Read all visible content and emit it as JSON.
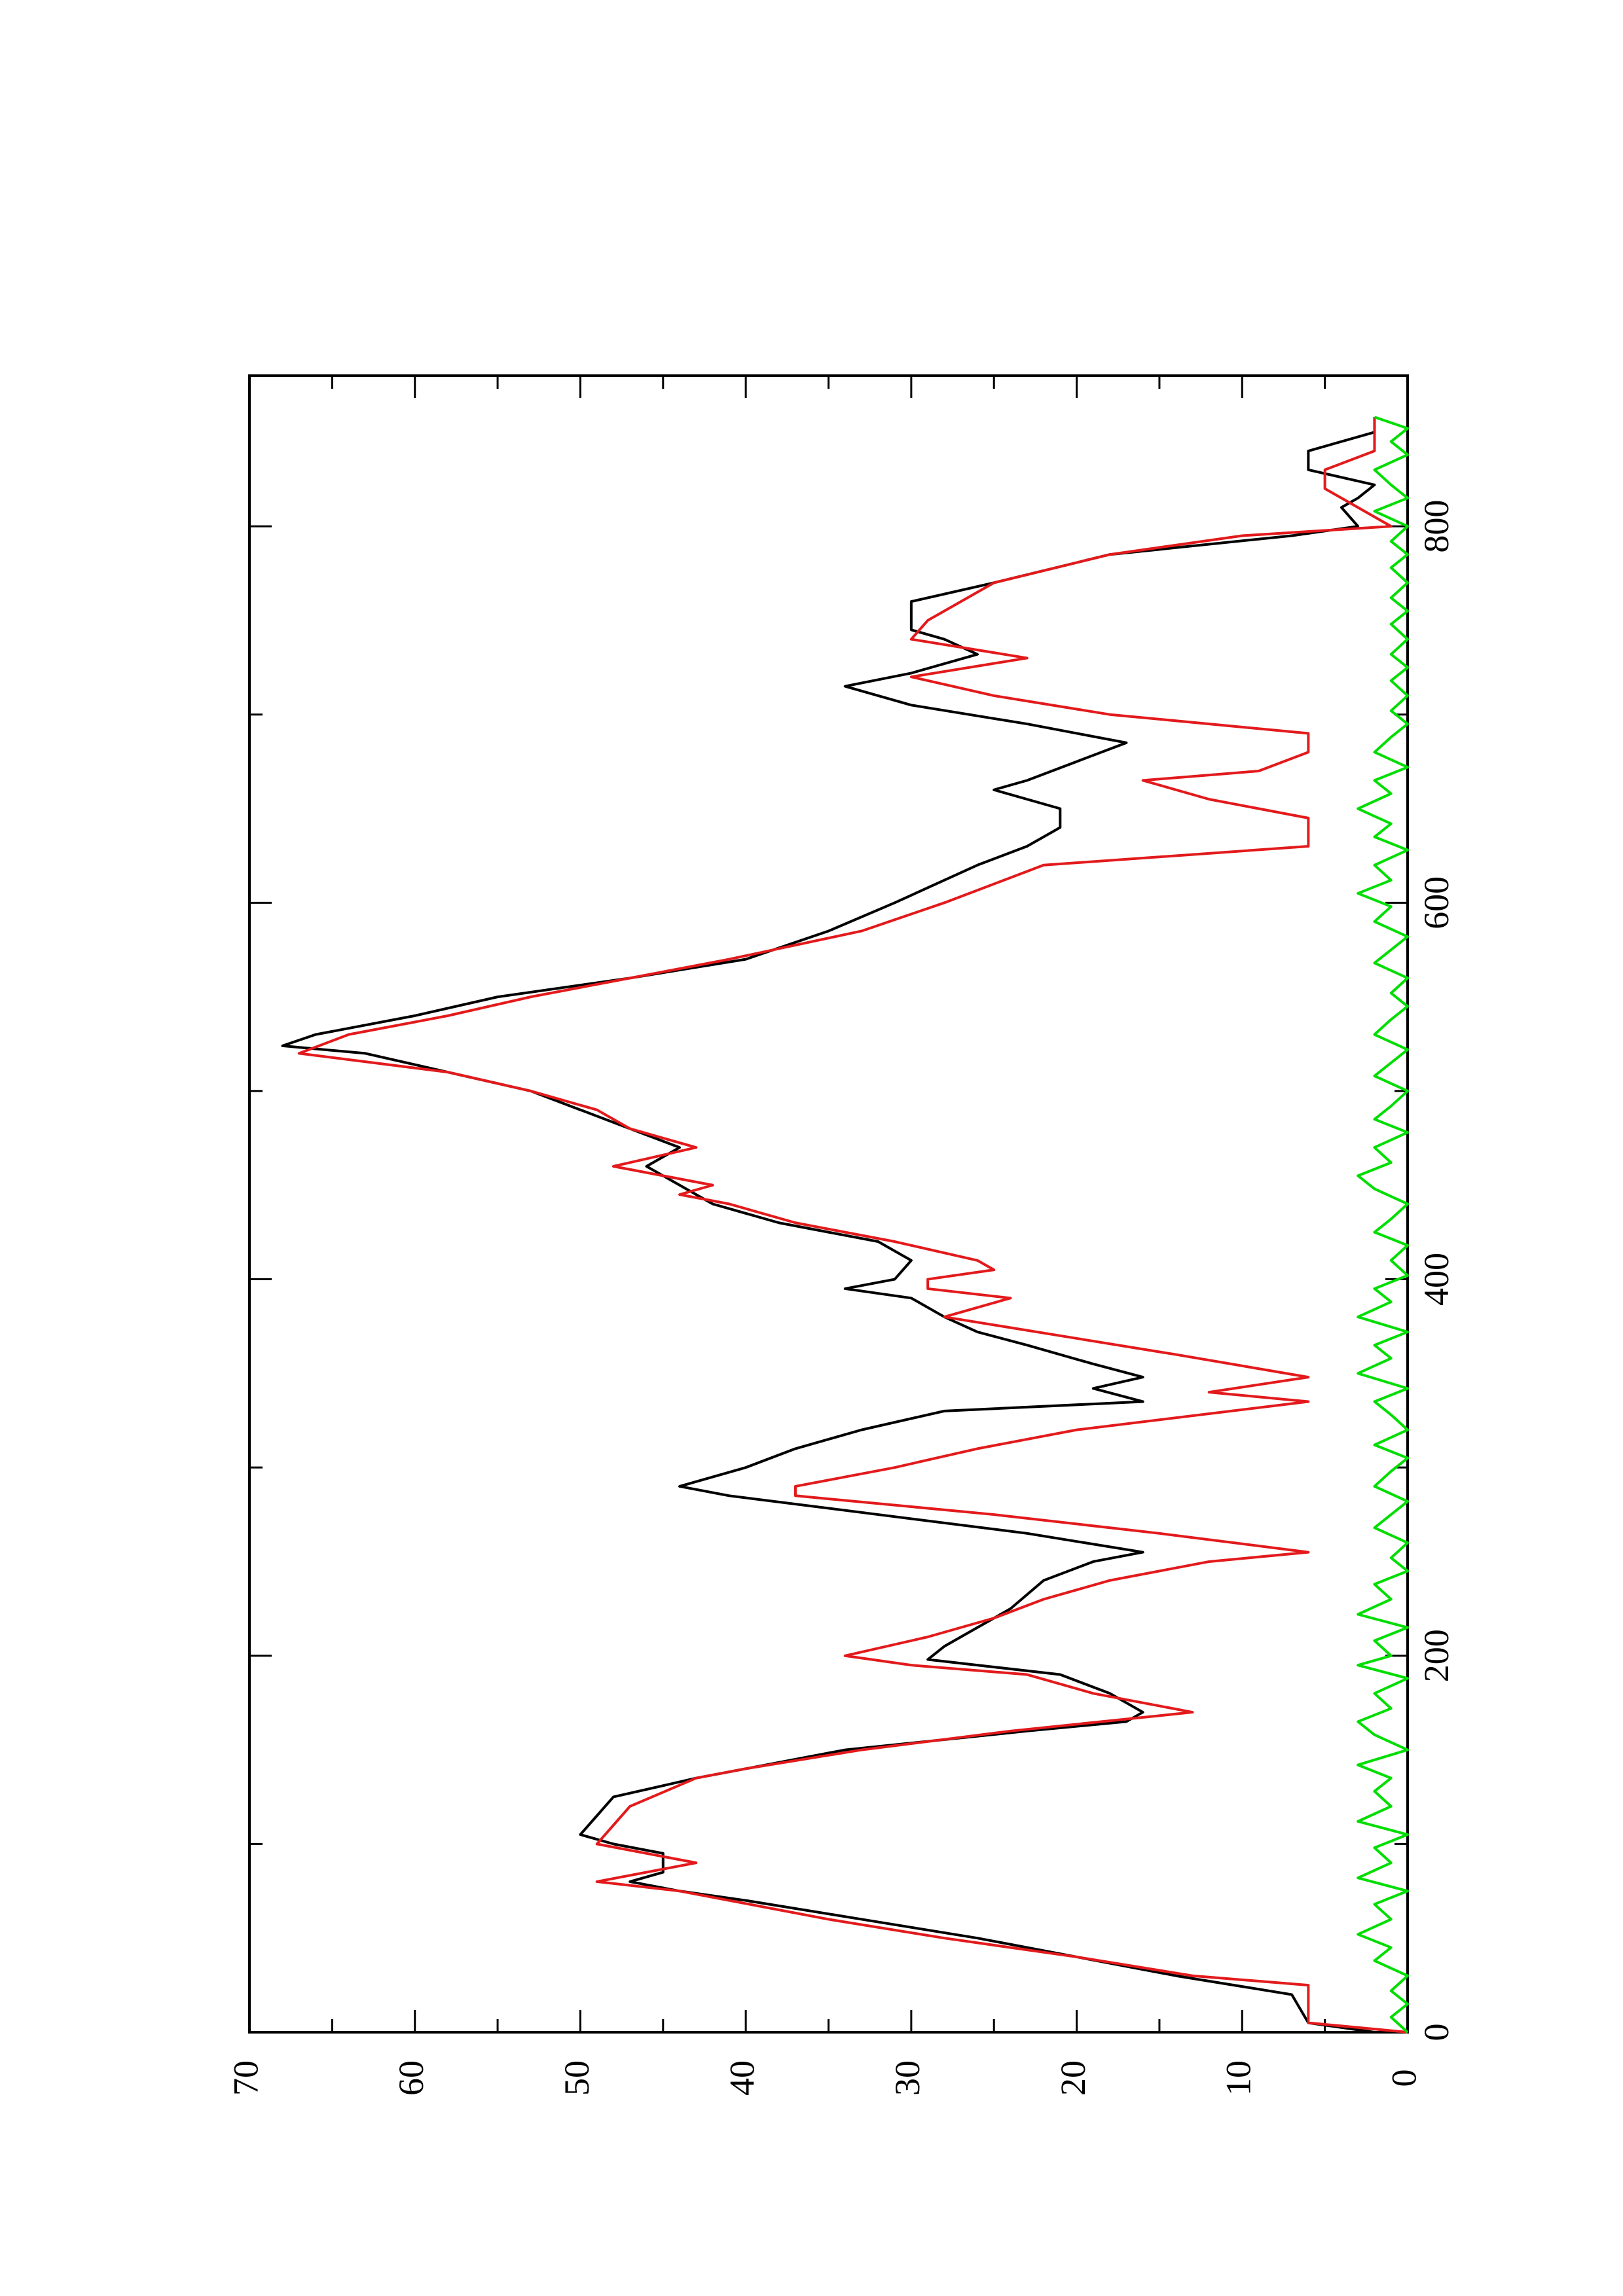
{
  "chart_data": {
    "type": "line",
    "orientation": "rotated-90-ccw",
    "title": "",
    "xlabel": "",
    "ylabel": "",
    "xlim": [
      0,
      880
    ],
    "ylim": [
      0,
      70
    ],
    "x_ticks": [
      "0",
      "200",
      "400",
      "600",
      "800"
    ],
    "y_ticks": [
      "0",
      "10",
      "20",
      "30",
      "40",
      "50",
      "60",
      "70"
    ],
    "grid": false,
    "legend": "none",
    "series": [
      {
        "color": "#000000",
        "points": [
          [
            0,
            2
          ],
          [
            5,
            6
          ],
          [
            20,
            7
          ],
          [
            30,
            14
          ],
          [
            40,
            20
          ],
          [
            50,
            26
          ],
          [
            60,
            33
          ],
          [
            70,
            40
          ],
          [
            75,
            44
          ],
          [
            80,
            47
          ],
          [
            85,
            45
          ],
          [
            95,
            45
          ],
          [
            100,
            48
          ],
          [
            105,
            50
          ],
          [
            115,
            49
          ],
          [
            125,
            48
          ],
          [
            135,
            43
          ],
          [
            150,
            34
          ],
          [
            160,
            23
          ],
          [
            165,
            17
          ],
          [
            170,
            16
          ],
          [
            180,
            18
          ],
          [
            190,
            21
          ],
          [
            198,
            29
          ],
          [
            205,
            28
          ],
          [
            215,
            26
          ],
          [
            225,
            24
          ],
          [
            240,
            22
          ],
          [
            250,
            19
          ],
          [
            255,
            16
          ],
          [
            265,
            23
          ],
          [
            275,
            32
          ],
          [
            285,
            41
          ],
          [
            290,
            44
          ],
          [
            300,
            40
          ],
          [
            310,
            37
          ],
          [
            320,
            33
          ],
          [
            330,
            28
          ],
          [
            335,
            16
          ],
          [
            342,
            19
          ],
          [
            348,
            16
          ],
          [
            355,
            19
          ],
          [
            365,
            23
          ],
          [
            372,
            26
          ],
          [
            380,
            28
          ],
          [
            390,
            30
          ],
          [
            395,
            34
          ],
          [
            400,
            31
          ],
          [
            410,
            30
          ],
          [
            420,
            32
          ],
          [
            430,
            38
          ],
          [
            440,
            42
          ],
          [
            450,
            44
          ],
          [
            460,
            46
          ],
          [
            470,
            44
          ],
          [
            480,
            47
          ],
          [
            490,
            50
          ],
          [
            500,
            53
          ],
          [
            510,
            58
          ],
          [
            520,
            63
          ],
          [
            524,
            68
          ],
          [
            530,
            66
          ],
          [
            540,
            60
          ],
          [
            550,
            55
          ],
          [
            560,
            47
          ],
          [
            570,
            40
          ],
          [
            585,
            35
          ],
          [
            600,
            31
          ],
          [
            620,
            26
          ],
          [
            630,
            23
          ],
          [
            640,
            21
          ],
          [
            650,
            21
          ],
          [
            660,
            25
          ],
          [
            665,
            23
          ],
          [
            675,
            20
          ],
          [
            685,
            17
          ],
          [
            695,
            23
          ],
          [
            705,
            30
          ],
          [
            715,
            34
          ],
          [
            722,
            30
          ],
          [
            732,
            26
          ],
          [
            740,
            28
          ],
          [
            745,
            30
          ],
          [
            760,
            30
          ],
          [
            770,
            25
          ],
          [
            785,
            18
          ],
          [
            795,
            7
          ],
          [
            800,
            3
          ],
          [
            810,
            4
          ],
          [
            815,
            3
          ],
          [
            822,
            2
          ],
          [
            830,
            6
          ],
          [
            840,
            6
          ],
          [
            850,
            2
          ],
          [
            858,
            2
          ]
        ]
      },
      {
        "color": "#e31a1c",
        "points": [
          [
            0,
            0
          ],
          [
            5,
            6
          ],
          [
            25,
            6
          ],
          [
            30,
            13
          ],
          [
            40,
            20
          ],
          [
            50,
            28
          ],
          [
            60,
            35
          ],
          [
            70,
            41
          ],
          [
            75,
            44
          ],
          [
            80,
            49
          ],
          [
            90,
            43
          ],
          [
            100,
            49
          ],
          [
            110,
            48
          ],
          [
            120,
            47
          ],
          [
            135,
            43
          ],
          [
            140,
            40
          ],
          [
            150,
            33
          ],
          [
            160,
            24
          ],
          [
            170,
            13
          ],
          [
            180,
            19
          ],
          [
            190,
            23
          ],
          [
            195,
            30
          ],
          [
            200,
            34
          ],
          [
            210,
            29
          ],
          [
            220,
            25
          ],
          [
            230,
            22
          ],
          [
            240,
            18
          ],
          [
            250,
            12
          ],
          [
            255,
            6
          ],
          [
            265,
            15
          ],
          [
            275,
            25
          ],
          [
            285,
            37
          ],
          [
            290,
            37
          ],
          [
            300,
            31
          ],
          [
            310,
            26
          ],
          [
            320,
            20
          ],
          [
            335,
            6
          ],
          [
            340,
            12
          ],
          [
            348,
            6
          ],
          [
            360,
            14
          ],
          [
            370,
            21
          ],
          [
            380,
            28
          ],
          [
            390,
            24
          ],
          [
            395,
            29
          ],
          [
            400,
            29
          ],
          [
            405,
            25
          ],
          [
            410,
            26
          ],
          [
            420,
            31
          ],
          [
            430,
            37
          ],
          [
            440,
            41
          ],
          [
            445,
            44
          ],
          [
            450,
            42
          ],
          [
            460,
            48
          ],
          [
            470,
            43
          ],
          [
            480,
            47
          ],
          [
            490,
            49
          ],
          [
            500,
            53
          ],
          [
            510,
            58
          ],
          [
            520,
            67
          ],
          [
            530,
            64
          ],
          [
            540,
            58
          ],
          [
            550,
            53
          ],
          [
            560,
            47
          ],
          [
            570,
            41
          ],
          [
            585,
            33
          ],
          [
            600,
            28
          ],
          [
            620,
            22
          ],
          [
            630,
            6
          ],
          [
            645,
            6
          ],
          [
            655,
            12
          ],
          [
            665,
            16
          ],
          [
            670,
            9
          ],
          [
            680,
            6
          ],
          [
            690,
            6
          ],
          [
            700,
            18
          ],
          [
            710,
            25
          ],
          [
            720,
            30
          ],
          [
            730,
            23
          ],
          [
            740,
            30
          ],
          [
            750,
            29
          ],
          [
            760,
            27
          ],
          [
            770,
            25
          ],
          [
            785,
            18
          ],
          [
            795,
            10
          ],
          [
            800,
            1
          ],
          [
            810,
            3
          ],
          [
            820,
            5
          ],
          [
            830,
            5
          ],
          [
            840,
            2
          ],
          [
            850,
            2
          ],
          [
            858,
            2
          ]
        ]
      },
      {
        "color": "#00dd00",
        "points": [
          [
            0,
            0
          ],
          [
            8,
            1
          ],
          [
            15,
            0
          ],
          [
            22,
            1
          ],
          [
            30,
            0
          ],
          [
            38,
            2
          ],
          [
            45,
            1
          ],
          [
            52,
            3
          ],
          [
            60,
            1
          ],
          [
            68,
            2
          ],
          [
            75,
            0
          ],
          [
            82,
            3
          ],
          [
            90,
            1
          ],
          [
            98,
            2
          ],
          [
            105,
            0
          ],
          [
            112,
            3
          ],
          [
            120,
            1
          ],
          [
            128,
            2
          ],
          [
            135,
            1
          ],
          [
            142,
            3
          ],
          [
            150,
            0
          ],
          [
            158,
            2
          ],
          [
            165,
            3
          ],
          [
            172,
            1
          ],
          [
            180,
            2
          ],
          [
            188,
            0
          ],
          [
            195,
            3
          ],
          [
            200,
            1
          ],
          [
            208,
            2
          ],
          [
            215,
            0
          ],
          [
            222,
            3
          ],
          [
            230,
            1
          ],
          [
            238,
            2
          ],
          [
            245,
            0
          ],
          [
            252,
            1
          ],
          [
            260,
            0
          ],
          [
            268,
            2
          ],
          [
            275,
            1
          ],
          [
            282,
            0
          ],
          [
            290,
            2
          ],
          [
            298,
            1
          ],
          [
            305,
            0
          ],
          [
            312,
            2
          ],
          [
            320,
            0
          ],
          [
            328,
            1
          ],
          [
            335,
            2
          ],
          [
            342,
            0
          ],
          [
            350,
            3
          ],
          [
            358,
            1
          ],
          [
            365,
            2
          ],
          [
            372,
            0
          ],
          [
            380,
            3
          ],
          [
            388,
            1
          ],
          [
            395,
            2
          ],
          [
            402,
            0
          ],
          [
            410,
            1
          ],
          [
            418,
            0
          ],
          [
            425,
            2
          ],
          [
            432,
            1
          ],
          [
            440,
            0
          ],
          [
            448,
            2
          ],
          [
            455,
            3
          ],
          [
            462,
            1
          ],
          [
            470,
            2
          ],
          [
            478,
            0
          ],
          [
            485,
            2
          ],
          [
            492,
            1
          ],
          [
            500,
            0
          ],
          [
            508,
            2
          ],
          [
            515,
            1
          ],
          [
            522,
            0
          ],
          [
            530,
            2
          ],
          [
            538,
            1
          ],
          [
            545,
            0
          ],
          [
            552,
            1
          ],
          [
            560,
            0
          ],
          [
            568,
            2
          ],
          [
            575,
            1
          ],
          [
            582,
            0
          ],
          [
            590,
            2
          ],
          [
            598,
            1
          ],
          [
            605,
            3
          ],
          [
            612,
            1
          ],
          [
            620,
            2
          ],
          [
            628,
            0
          ],
          [
            635,
            2
          ],
          [
            642,
            1
          ],
          [
            650,
            3
          ],
          [
            658,
            1
          ],
          [
            665,
            2
          ],
          [
            672,
            0
          ],
          [
            680,
            2
          ],
          [
            688,
            1
          ],
          [
            695,
            0
          ],
          [
            702,
            1
          ],
          [
            710,
            0
          ],
          [
            718,
            1
          ],
          [
            725,
            0
          ],
          [
            732,
            1
          ],
          [
            740,
            0
          ],
          [
            748,
            1
          ],
          [
            755,
            0
          ],
          [
            762,
            1
          ],
          [
            770,
            0
          ],
          [
            778,
            1
          ],
          [
            785,
            0
          ],
          [
            792,
            1
          ],
          [
            800,
            0
          ],
          [
            808,
            2
          ],
          [
            815,
            0
          ],
          [
            822,
            1
          ],
          [
            830,
            2
          ],
          [
            838,
            0
          ],
          [
            845,
            1
          ],
          [
            852,
            0
          ],
          [
            858,
            2
          ]
        ]
      }
    ]
  }
}
